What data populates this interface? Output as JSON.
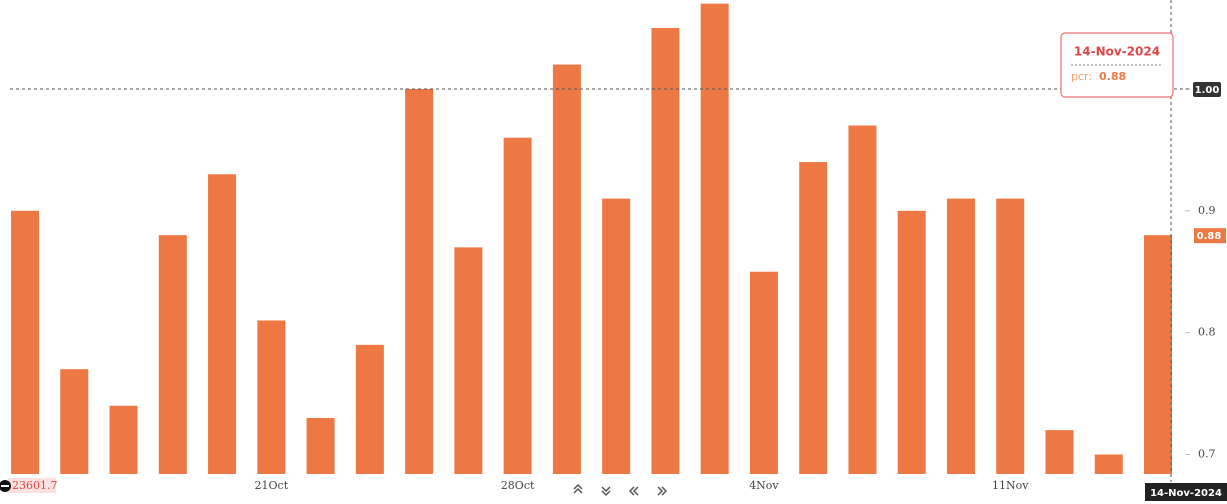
{
  "chart_data": {
    "type": "bar",
    "categories": [
      null,
      null,
      null,
      null,
      null,
      "21Oct",
      null,
      null,
      null,
      null,
      "28Oct",
      null,
      null,
      null,
      null,
      "4Nov",
      null,
      null,
      null,
      null,
      "11Nov",
      null,
      null,
      null
    ],
    "values": [
      0.9,
      0.77,
      0.74,
      0.88,
      0.93,
      0.81,
      0.73,
      0.79,
      1.0,
      0.87,
      0.96,
      1.02,
      0.91,
      1.05,
      1.07,
      0.85,
      0.94,
      0.97,
      0.9,
      0.91,
      0.91,
      0.72,
      0.7,
      0.88
    ],
    "color": "#ee7843",
    "ylim": [
      0.684,
      1.073
    ],
    "yticks": [
      0.7,
      0.8,
      0.9,
      1
    ],
    "crosshair_date": "14-Nov-2024",
    "crosshair_y": {
      "value": 1,
      "label": "1.00"
    },
    "tooltip_label": "pcr:",
    "left_label": 23601.7
  }
}
